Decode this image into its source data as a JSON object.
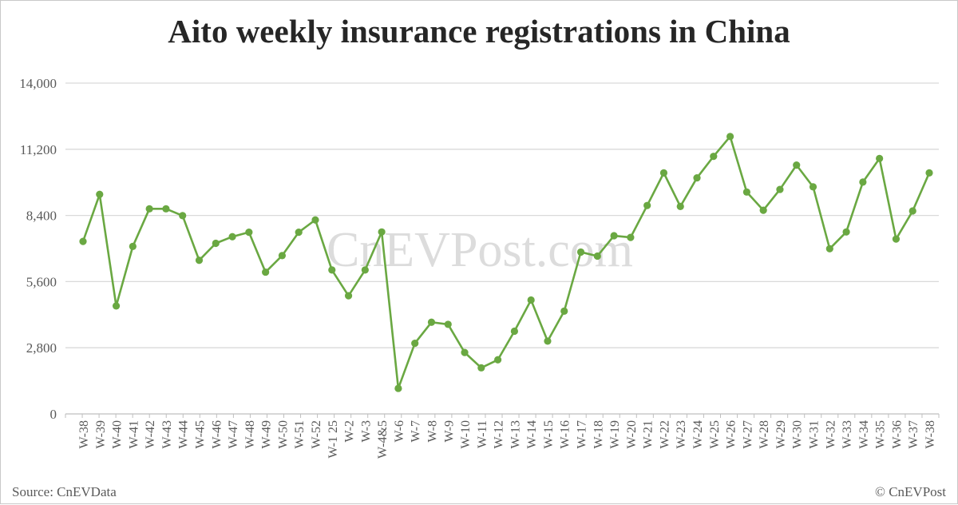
{
  "chart_data": {
    "type": "line",
    "title": "Aito weekly insurance registrations in China",
    "xlabel": "",
    "ylabel": "",
    "ylim": [
      0,
      14000
    ],
    "yticks": [
      "0",
      "2,800",
      "5,600",
      "8,400",
      "11,200",
      "14,000"
    ],
    "ytick_values": [
      0,
      2800,
      5600,
      8400,
      11200,
      14000
    ],
    "grid": true,
    "legend": "none",
    "color": "#6aa842",
    "categories": [
      "W-38",
      "W-39",
      "W-40",
      "W-41",
      "W-42",
      "W-43",
      "W-44",
      "W-45",
      "W-46",
      "W-47",
      "W-48",
      "W-49",
      "W-50",
      "W-51",
      "W-52",
      "W-1 25",
      "W-2",
      "W-3",
      "W-4&5",
      "W-6",
      "W-7",
      "W-8",
      "W-9",
      "W-10",
      "W-11",
      "W-12",
      "W-13",
      "W-14",
      "W-15",
      "W-16",
      "W-17",
      "W-18",
      "W-19",
      "W-20",
      "W-21",
      "W-22",
      "W-23",
      "W-24",
      "W-25",
      "W-26",
      "W-27",
      "W-28",
      "W-29",
      "W-30",
      "W-31",
      "W-32",
      "W-33",
      "W-34",
      "W-35",
      "W-36",
      "W-37",
      "W-38"
    ],
    "values": [
      7300,
      9290,
      4570,
      7090,
      8680,
      8680,
      8390,
      6500,
      7220,
      7500,
      7690,
      6000,
      6700,
      7690,
      8210,
      6090,
      5000,
      6090,
      7700,
      1080,
      2990,
      3880,
      3790,
      2600,
      1950,
      2290,
      3500,
      4820,
      3080,
      4350,
      6850,
      6680,
      7540,
      7470,
      8820,
      10200,
      8780,
      9990,
      10900,
      11740,
      9390,
      8620,
      9500,
      10530,
      9610,
      6990,
      7700,
      9810,
      10810,
      7400,
      8590,
      10200
    ]
  },
  "watermark": "CnEVPost.com",
  "source": "Source: CnEVData",
  "copyright": "© CnEVPost"
}
